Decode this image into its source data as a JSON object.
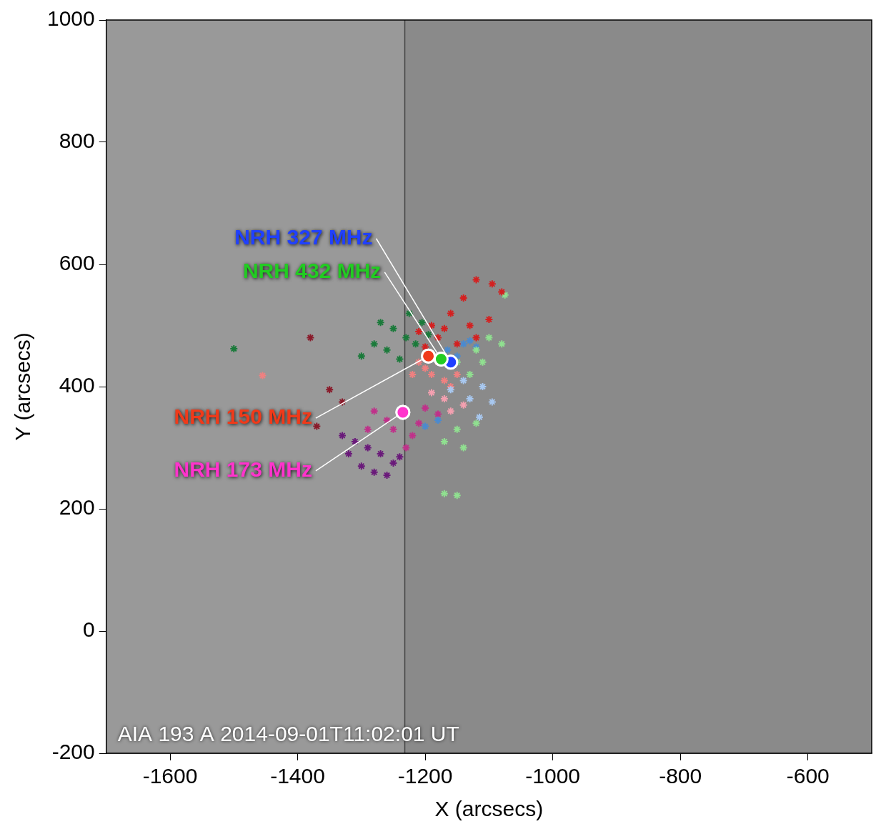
{
  "chart_data": {
    "type": "scatter",
    "x_label": "X (arcsecs)",
    "y_label": "Y (arcsecs)",
    "xlim": [
      -1700,
      -500
    ],
    "xticks": [
      -1600,
      -1400,
      -1200,
      -1000,
      -800,
      -600
    ],
    "ylim": [
      -200,
      1000
    ],
    "yticks": [
      -200,
      0,
      200,
      400,
      600,
      800,
      1000
    ],
    "grid": false,
    "annotation": "AIA 193 A 2014-09-01T11:02:01 UT",
    "shaded_region": {
      "xlim": [
        -1700,
        -1232
      ],
      "color": "#999999"
    },
    "series": [
      {
        "color": "#d42020",
        "marker": "star",
        "values": [
          [
            -1120,
            575
          ],
          [
            -1095,
            568
          ],
          [
            -1080,
            555
          ],
          [
            -1140,
            545
          ],
          [
            -1160,
            520
          ],
          [
            -1190,
            500
          ],
          [
            -1210,
            490
          ],
          [
            -1170,
            495
          ],
          [
            -1130,
            500
          ],
          [
            -1150,
            470
          ],
          [
            -1200,
            465
          ],
          [
            -1120,
            480
          ],
          [
            -1100,
            510
          ],
          [
            -1180,
            480
          ]
        ]
      },
      {
        "color": "#1a7a3a",
        "marker": "star",
        "values": [
          [
            -1500,
            462
          ],
          [
            -1270,
            505
          ],
          [
            -1250,
            495
          ],
          [
            -1230,
            480
          ],
          [
            -1215,
            470
          ],
          [
            -1260,
            460
          ],
          [
            -1240,
            445
          ],
          [
            -1280,
            470
          ],
          [
            -1225,
            520
          ],
          [
            -1205,
            505
          ],
          [
            -1195,
            485
          ],
          [
            -1300,
            450
          ]
        ]
      },
      {
        "color": "#90e090",
        "marker": "star",
        "values": [
          [
            -1100,
            480
          ],
          [
            -1080,
            470
          ],
          [
            -1120,
            460
          ],
          [
            -1150,
            440
          ],
          [
            -1110,
            440
          ],
          [
            -1130,
            420
          ],
          [
            -1150,
            330
          ],
          [
            -1140,
            300
          ],
          [
            -1170,
            310
          ],
          [
            -1120,
            340
          ],
          [
            -1170,
            225
          ],
          [
            -1150,
            222
          ],
          [
            -1075,
            550
          ]
        ]
      },
      {
        "color": "#4a8ad0",
        "marker": "star",
        "values": [
          [
            -1140,
            470
          ],
          [
            -1130,
            475
          ],
          [
            -1120,
            465
          ],
          [
            -1150,
            450
          ],
          [
            -1165,
            460
          ],
          [
            -1180,
            345
          ],
          [
            -1200,
            335
          ]
        ]
      },
      {
        "color": "#a8c8f0",
        "marker": "star",
        "values": [
          [
            -1110,
            400
          ],
          [
            -1095,
            375
          ],
          [
            -1130,
            380
          ],
          [
            -1115,
            350
          ],
          [
            -1160,
            395
          ],
          [
            -1140,
            410
          ]
        ]
      },
      {
        "color": "#f08080",
        "marker": "star",
        "values": [
          [
            -1200,
            430
          ],
          [
            -1190,
            420
          ],
          [
            -1170,
            410
          ],
          [
            -1160,
            400
          ],
          [
            -1210,
            440
          ],
          [
            -1220,
            420
          ],
          [
            -1180,
            440
          ],
          [
            -1455,
            418
          ],
          [
            -1150,
            420
          ]
        ]
      },
      {
        "color": "#f4a0b0",
        "marker": "star",
        "values": [
          [
            -1190,
            390
          ],
          [
            -1170,
            380
          ],
          [
            -1160,
            360
          ],
          [
            -1140,
            370
          ]
        ]
      },
      {
        "color": "#c0308a",
        "marker": "star",
        "values": [
          [
            -1280,
            360
          ],
          [
            -1260,
            345
          ],
          [
            -1250,
            330
          ],
          [
            -1240,
            355
          ],
          [
            -1220,
            320
          ],
          [
            -1210,
            340
          ],
          [
            -1290,
            330
          ],
          [
            -1230,
            300
          ],
          [
            -1200,
            365
          ],
          [
            -1180,
            355
          ]
        ]
      },
      {
        "color": "#6a1a7a",
        "marker": "star",
        "values": [
          [
            -1310,
            310
          ],
          [
            -1290,
            300
          ],
          [
            -1270,
            290
          ],
          [
            -1300,
            270
          ],
          [
            -1280,
            260
          ],
          [
            -1260,
            255
          ],
          [
            -1250,
            275
          ],
          [
            -1320,
            290
          ],
          [
            -1240,
            285
          ],
          [
            -1330,
            320
          ]
        ]
      },
      {
        "color": "#8a1a2a",
        "marker": "star",
        "values": [
          [
            -1370,
            335
          ],
          [
            -1380,
            480
          ],
          [
            -1350,
            395
          ],
          [
            -1330,
            375
          ]
        ]
      },
      {
        "name": "NRH 327 MHz",
        "color": "#2040ff",
        "marker": "circle",
        "values": [
          [
            -1160,
            440
          ]
        ]
      },
      {
        "name": "NRH 432 MHz",
        "color": "#22cc22",
        "marker": "circle",
        "values": [
          [
            -1175,
            445
          ]
        ]
      },
      {
        "name": "NRH 150 MHz",
        "color": "#f03a1a",
        "marker": "circle",
        "values": [
          [
            -1195,
            450
          ]
        ]
      },
      {
        "name": "NRH 173 MHz",
        "color": "#ff33cc",
        "marker": "circle",
        "values": [
          [
            -1235,
            358
          ]
        ]
      }
    ]
  }
}
